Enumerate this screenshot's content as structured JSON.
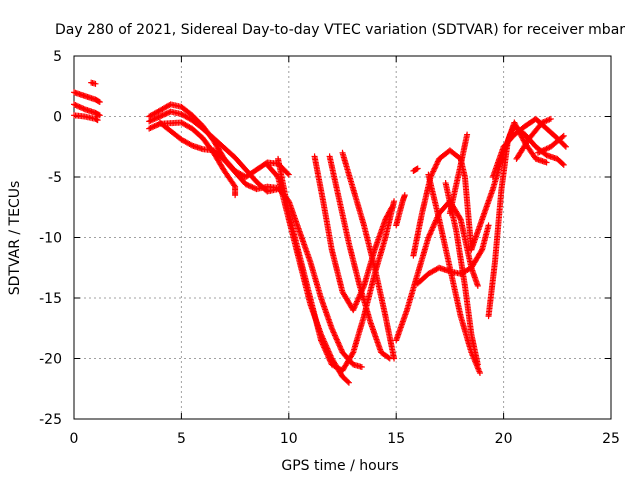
{
  "chart_data": {
    "type": "scatter",
    "title": "Day 280 of 2021, Sidereal Day-to-day VTEC variation (SDTVAR) for receiver mbar",
    "xlabel": "GPS time / hours",
    "ylabel": "SDTVAR / TECUs",
    "xlim": [
      0,
      25
    ],
    "ylim": [
      -25,
      5
    ],
    "xticks": [
      0,
      5,
      10,
      15,
      20,
      25
    ],
    "yticks": [
      5,
      0,
      -5,
      -10,
      -15,
      -20,
      -25
    ],
    "grid": true,
    "marker": "+",
    "color": "#ff0000",
    "series": [
      {
        "points": [
          [
            0,
            2.0
          ],
          [
            0.5,
            1.7
          ],
          [
            1.0,
            1.4
          ],
          [
            1.2,
            1.2
          ]
        ]
      },
      {
        "points": [
          [
            0,
            1.0
          ],
          [
            0.5,
            0.6
          ],
          [
            1.0,
            0.3
          ],
          [
            1.2,
            0.1
          ]
        ]
      },
      {
        "points": [
          [
            0,
            0.1
          ],
          [
            0.5,
            0.0
          ],
          [
            1.0,
            -0.2
          ],
          [
            1.1,
            -0.3
          ]
        ]
      },
      {
        "points": [
          [
            0.8,
            2.8
          ],
          [
            1.0,
            2.7
          ]
        ]
      },
      {
        "points": [
          [
            3.5,
            -0.4
          ],
          [
            4.0,
            0.0
          ],
          [
            4.5,
            0.4
          ],
          [
            5.0,
            0.2
          ],
          [
            5.5,
            -0.3
          ],
          [
            6.0,
            -1.0
          ],
          [
            6.5,
            -1.8
          ],
          [
            7.0,
            -2.6
          ],
          [
            7.5,
            -3.4
          ],
          [
            8.0,
            -4.4
          ],
          [
            8.5,
            -5.4
          ],
          [
            9.0,
            -6.2
          ],
          [
            9.5,
            -6.0
          ]
        ]
      },
      {
        "points": [
          [
            3.5,
            0.0
          ],
          [
            4.0,
            0.5
          ],
          [
            4.5,
            1.0
          ],
          [
            5.0,
            0.8
          ],
          [
            5.5,
            0.1
          ],
          [
            6.0,
            -0.8
          ],
          [
            6.5,
            -2.0
          ],
          [
            7.0,
            -3.5
          ],
          [
            7.5,
            -4.5
          ],
          [
            8.0,
            -5.0
          ],
          [
            8.5,
            -4.4
          ],
          [
            9.0,
            -3.8
          ],
          [
            9.5,
            -3.9
          ],
          [
            10.0,
            -4.8
          ]
        ]
      },
      {
        "points": [
          [
            4.0,
            -0.5
          ],
          [
            4.5,
            -1.2
          ],
          [
            5.0,
            -1.9
          ],
          [
            5.5,
            -2.4
          ],
          [
            6.0,
            -2.7
          ],
          [
            6.5,
            -2.8
          ],
          [
            7.0,
            -3.6
          ],
          [
            7.5,
            -4.6
          ],
          [
            8.0,
            -5.6
          ],
          [
            8.5,
            -6.0
          ],
          [
            9.0,
            -5.8
          ],
          [
            9.5,
            -5.9
          ],
          [
            10.0,
            -7.0
          ],
          [
            10.5,
            -9.5
          ],
          [
            11.0,
            -12.0
          ],
          [
            11.5,
            -15.0
          ],
          [
            12.0,
            -17.5
          ],
          [
            12.5,
            -19.5
          ],
          [
            13.0,
            -20.5
          ],
          [
            13.4,
            -20.7
          ]
        ]
      },
      {
        "points": [
          [
            3.5,
            -1.0
          ],
          [
            4.0,
            -0.6
          ],
          [
            5.0,
            -0.5
          ],
          [
            5.5,
            -1.0
          ],
          [
            6.0,
            -1.8
          ],
          [
            6.5,
            -3.0
          ],
          [
            7.0,
            -4.5
          ],
          [
            7.5,
            -5.8
          ],
          [
            7.5,
            -6.5
          ]
        ]
      },
      {
        "points": [
          [
            9.0,
            -4.0
          ],
          [
            9.5,
            -5.0
          ],
          [
            10.0,
            -8.5
          ],
          [
            10.5,
            -12.0
          ],
          [
            11.0,
            -15.5
          ],
          [
            11.5,
            -18.0
          ],
          [
            12.0,
            -20.0
          ],
          [
            12.5,
            -21.5
          ],
          [
            12.8,
            -22.0
          ]
        ]
      },
      {
        "points": [
          [
            9.5,
            -3.5
          ],
          [
            10.0,
            -8.0
          ],
          [
            10.5,
            -11.5
          ],
          [
            11.0,
            -15.0
          ],
          [
            11.5,
            -18.5
          ],
          [
            12.0,
            -20.5
          ],
          [
            12.5,
            -21.0
          ],
          [
            13.0,
            -19.5
          ],
          [
            13.5,
            -16.5
          ],
          [
            14.0,
            -13.0
          ],
          [
            14.5,
            -10.0
          ],
          [
            14.9,
            -7.0
          ]
        ]
      },
      {
        "points": [
          [
            11.2,
            -3.3
          ],
          [
            11.6,
            -7.0
          ],
          [
            12.0,
            -11.0
          ],
          [
            12.5,
            -14.5
          ],
          [
            13.0,
            -16.0
          ],
          [
            13.5,
            -14.0
          ],
          [
            14.0,
            -11.0
          ],
          [
            14.5,
            -8.5
          ],
          [
            14.8,
            -7.5
          ]
        ]
      },
      {
        "points": [
          [
            11.9,
            -3.3
          ],
          [
            12.3,
            -6.5
          ],
          [
            12.8,
            -10.5
          ],
          [
            13.3,
            -14.0
          ],
          [
            13.8,
            -17.0
          ],
          [
            14.3,
            -19.5
          ],
          [
            14.7,
            -20.0
          ]
        ]
      },
      {
        "points": [
          [
            12.5,
            -3.0
          ],
          [
            13.0,
            -6.0
          ],
          [
            13.5,
            -9.0
          ],
          [
            14.0,
            -12.5
          ],
          [
            14.5,
            -16.5
          ],
          [
            14.9,
            -20.0
          ]
        ]
      },
      {
        "points": [
          [
            15.0,
            -18.5
          ],
          [
            15.5,
            -16.0
          ],
          [
            16.0,
            -13.0
          ],
          [
            16.5,
            -10.0
          ],
          [
            17.0,
            -8.0
          ],
          [
            17.5,
            -7.0
          ],
          [
            18.0,
            -8.5
          ],
          [
            18.5,
            -12.5
          ],
          [
            18.8,
            -14.0
          ]
        ]
      },
      {
        "points": [
          [
            15.8,
            -11.5
          ],
          [
            16.2,
            -8.0
          ],
          [
            16.6,
            -5.0
          ],
          [
            17.0,
            -3.5
          ],
          [
            17.5,
            -2.8
          ],
          [
            18.0,
            -3.5
          ],
          [
            18.2,
            -5.0
          ],
          [
            18.5,
            -11.0
          ]
        ]
      },
      {
        "points": [
          [
            15.8,
            -4.5
          ],
          [
            16.0,
            -4.3
          ]
        ]
      },
      {
        "points": [
          [
            15.0,
            -9.0
          ],
          [
            15.3,
            -7.0
          ],
          [
            15.4,
            -6.5
          ]
        ]
      },
      {
        "points": [
          [
            16.0,
            -13.8
          ],
          [
            16.5,
            -13.0
          ],
          [
            17.0,
            -12.5
          ],
          [
            17.5,
            -12.8
          ],
          [
            18.0,
            -13.0
          ],
          [
            18.5,
            -12.5
          ],
          [
            19.0,
            -11.0
          ],
          [
            19.3,
            -9.0
          ]
        ]
      },
      {
        "points": [
          [
            16.5,
            -4.8
          ],
          [
            17.0,
            -8.5
          ],
          [
            17.5,
            -12.5
          ],
          [
            18.0,
            -16.5
          ],
          [
            18.5,
            -19.5
          ],
          [
            18.9,
            -21.2
          ]
        ]
      },
      {
        "points": [
          [
            17.3,
            -5.5
          ],
          [
            17.8,
            -9.5
          ],
          [
            18.2,
            -14.0
          ],
          [
            18.5,
            -18.0
          ],
          [
            18.8,
            -20.5
          ]
        ]
      },
      {
        "points": [
          [
            17.5,
            -8.0
          ],
          [
            18.0,
            -4.0
          ],
          [
            18.3,
            -1.5
          ]
        ]
      },
      {
        "points": [
          [
            18.5,
            -11.0
          ],
          [
            19.0,
            -8.5
          ],
          [
            19.5,
            -6.0
          ],
          [
            20.0,
            -3.0
          ],
          [
            20.3,
            -1.5
          ],
          [
            20.5,
            -0.8
          ],
          [
            21.0,
            -1.5
          ],
          [
            21.5,
            -2.5
          ],
          [
            22.0,
            -3.2
          ],
          [
            22.5,
            -3.5
          ],
          [
            22.8,
            -4.0
          ]
        ]
      },
      {
        "points": [
          [
            19.3,
            -16.5
          ],
          [
            19.6,
            -12.0
          ],
          [
            19.9,
            -6.0
          ],
          [
            20.2,
            -2.0
          ],
          [
            20.5,
            -0.5
          ],
          [
            21.0,
            -2.2
          ],
          [
            21.5,
            -3.5
          ],
          [
            22.0,
            -3.8
          ]
        ]
      },
      {
        "points": [
          [
            19.5,
            -5.0
          ],
          [
            20.0,
            -2.5
          ],
          [
            20.5,
            -1.5
          ],
          [
            21.0,
            -0.8
          ],
          [
            21.5,
            -0.2
          ],
          [
            22.0,
            -1.0
          ],
          [
            22.5,
            -1.8
          ],
          [
            22.9,
            -2.5
          ]
        ]
      },
      {
        "points": [
          [
            20.6,
            -3.5
          ],
          [
            21.2,
            -1.8
          ],
          [
            21.8,
            -0.5
          ],
          [
            22.2,
            -0.2
          ]
        ]
      },
      {
        "points": [
          [
            21.6,
            -3.0
          ],
          [
            22.2,
            -2.5
          ],
          [
            22.8,
            -1.6
          ]
        ]
      }
    ]
  }
}
